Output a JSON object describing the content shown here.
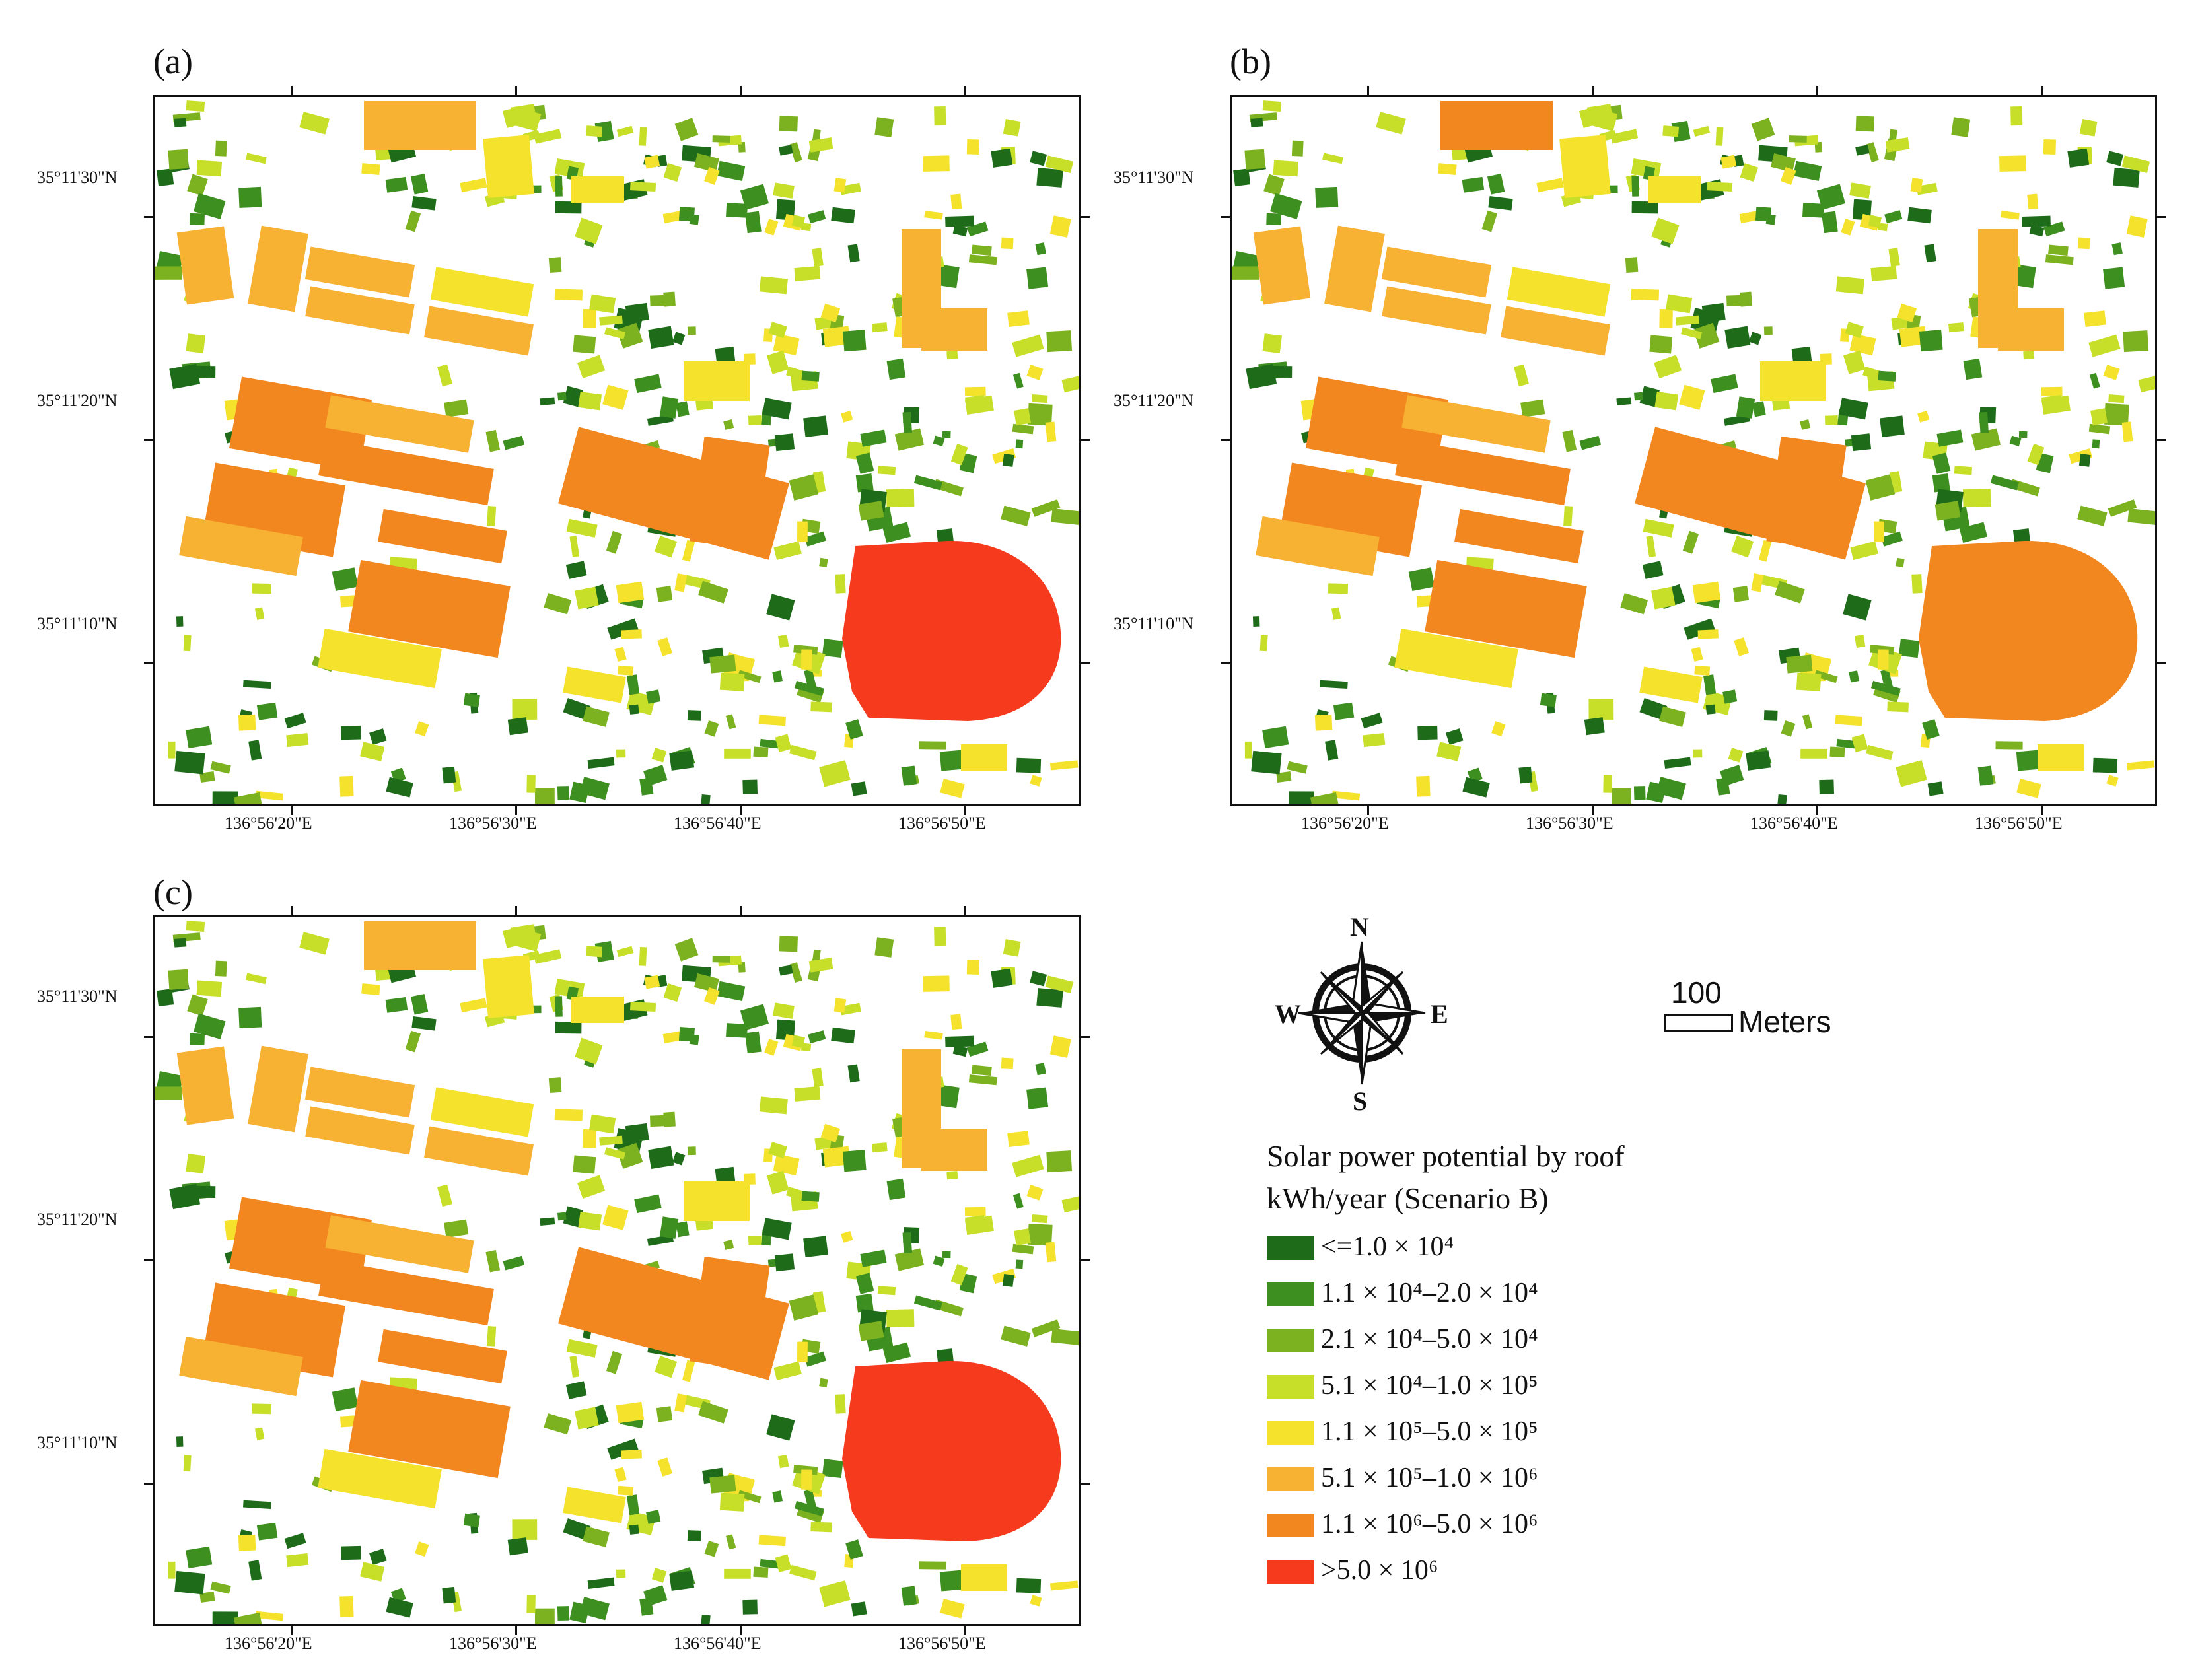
{
  "panels": [
    {
      "label": "(a)",
      "stadium_class": 7
    },
    {
      "label": "(b)",
      "stadium_class": 6
    },
    {
      "label": "(c)",
      "stadium_class": 7
    }
  ],
  "lat_labels": [
    "35°11'30\"N",
    "35°11'20\"N",
    "35°11'10\"N"
  ],
  "lon_labels": [
    "136°56'20\"E",
    "136°56'30\"E",
    "136°56'40\"E",
    "136°56'50\"E"
  ],
  "compass": {
    "icon": "compass-rose-icon",
    "n": "N",
    "s": "S",
    "e": "E",
    "w": "W"
  },
  "scale_bar": {
    "value": "100",
    "unit": "Meters"
  },
  "legend": {
    "title_line1": "Solar power potential by roof",
    "title_line2": "kWh/year (Scenario B)",
    "classes": [
      {
        "label": "<=1.0 × 10⁴",
        "color": "#1e6b1a"
      },
      {
        "label": "1.1 × 10⁴–2.0 × 10⁴",
        "color": "#3d8f1f"
      },
      {
        "label": "2.1 × 10⁴–5.0 × 10⁴",
        "color": "#7cb21f"
      },
      {
        "label": "5.1 × 10⁴–1.0 × 10⁵",
        "color": "#c8df2a"
      },
      {
        "label": "1.1 × 10⁵–5.0 × 10⁵",
        "color": "#f5e22c"
      },
      {
        "label": "5.1 × 10⁵–1.0 × 10⁶",
        "color": "#f7b133"
      },
      {
        "label": "1.1 × 10⁶–5.0 × 10⁶",
        "color": "#f3871f"
      },
      {
        "label": ">5.0 × 10⁶",
        "color": "#f53a1e"
      }
    ]
  }
}
